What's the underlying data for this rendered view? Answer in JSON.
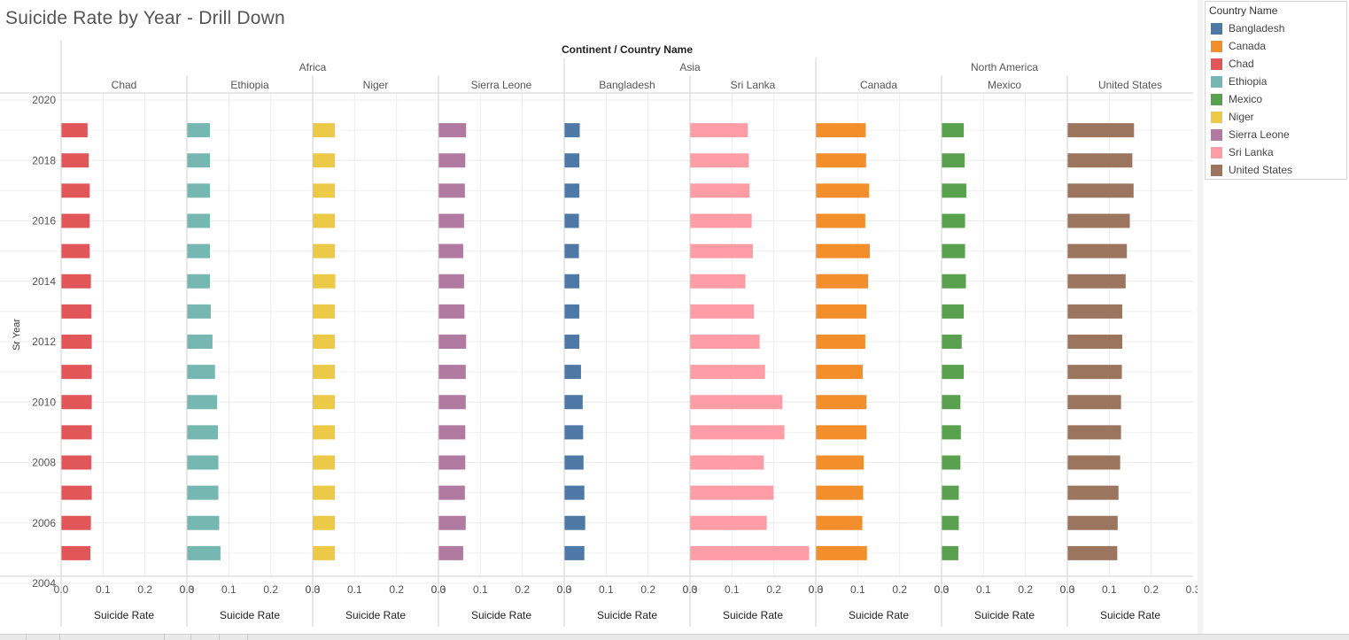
{
  "title": "Suicide Rate by Year - Drill Down",
  "chart_data": {
    "type": "bar",
    "orientation": "horizontal",
    "header_title": "Continent / Country Name",
    "y_axis_label": "Sr Year",
    "y_ticks": [
      2020,
      2018,
      2016,
      2014,
      2012,
      2010,
      2008,
      2006,
      2004
    ],
    "y_range": [
      2004,
      2020
    ],
    "x_axis_label": "Suicide Rate",
    "x_ticks": [
      "0.0",
      "0.1",
      "0.2",
      "0.3"
    ],
    "x_range": [
      0,
      0.3
    ],
    "years": [
      2005,
      2006,
      2007,
      2008,
      2009,
      2010,
      2011,
      2012,
      2013,
      2014,
      2015,
      2016,
      2017,
      2018,
      2019
    ],
    "continents": [
      {
        "name": "Africa",
        "countries": [
          "Chad",
          "Ethiopia",
          "Niger",
          "Sierra Leone"
        ]
      },
      {
        "name": "Asia",
        "countries": [
          "Bangladesh",
          "Sri Lanka"
        ]
      },
      {
        "name": "North America",
        "countries": [
          "Canada",
          "Mexico",
          "United States"
        ]
      }
    ],
    "series": [
      {
        "name": "Chad",
        "color": "#e15759",
        "values": [
          0.069,
          0.07,
          0.072,
          0.071,
          0.072,
          0.072,
          0.072,
          0.072,
          0.071,
          0.07,
          0.067,
          0.067,
          0.067,
          0.065,
          0.062
        ]
      },
      {
        "name": "Ethiopia",
        "color": "#76b7b2",
        "values": [
          0.079,
          0.076,
          0.074,
          0.074,
          0.073,
          0.071,
          0.066,
          0.06,
          0.056,
          0.054,
          0.054,
          0.054,
          0.054,
          0.054,
          0.054
        ]
      },
      {
        "name": "Niger",
        "color": "#edc948",
        "values": [
          0.052,
          0.052,
          0.052,
          0.052,
          0.052,
          0.052,
          0.052,
          0.052,
          0.052,
          0.053,
          0.052,
          0.052,
          0.052,
          0.052,
          0.052
        ]
      },
      {
        "name": "Sierra Leone",
        "color": "#b07aa1",
        "values": [
          0.058,
          0.064,
          0.062,
          0.063,
          0.063,
          0.064,
          0.064,
          0.065,
          0.061,
          0.06,
          0.058,
          0.06,
          0.062,
          0.063,
          0.065
        ]
      },
      {
        "name": "Bangladesh",
        "color": "#4e79a7",
        "values": [
          0.047,
          0.049,
          0.047,
          0.045,
          0.044,
          0.043,
          0.039,
          0.035,
          0.035,
          0.035,
          0.034,
          0.034,
          0.035,
          0.035,
          0.036
        ]
      },
      {
        "name": "Sri Lanka",
        "color": "#ff9da7",
        "values": [
          0.283,
          0.182,
          0.198,
          0.175,
          0.224,
          0.219,
          0.178,
          0.165,
          0.151,
          0.131,
          0.149,
          0.146,
          0.141,
          0.139,
          0.137
        ]
      },
      {
        "name": "Canada",
        "color": "#f28e2b",
        "values": [
          0.121,
          0.11,
          0.112,
          0.113,
          0.12,
          0.12,
          0.111,
          0.117,
          0.12,
          0.124,
          0.128,
          0.117,
          0.126,
          0.119,
          0.118
        ]
      },
      {
        "name": "Mexico",
        "color": "#59a14f",
        "values": [
          0.039,
          0.04,
          0.04,
          0.044,
          0.045,
          0.044,
          0.052,
          0.047,
          0.052,
          0.057,
          0.055,
          0.055,
          0.058,
          0.054,
          0.052
        ]
      },
      {
        "name": "United States",
        "color": "#9c755f",
        "values": [
          0.118,
          0.119,
          0.121,
          0.125,
          0.127,
          0.127,
          0.129,
          0.13,
          0.13,
          0.138,
          0.141,
          0.148,
          0.157,
          0.154,
          0.158
        ]
      }
    ]
  },
  "legend": {
    "title": "Country Name",
    "items": [
      {
        "label": "Bangladesh",
        "color": "#4e79a7"
      },
      {
        "label": "Canada",
        "color": "#f28e2b"
      },
      {
        "label": "Chad",
        "color": "#e15759"
      },
      {
        "label": "Ethiopia",
        "color": "#76b7b2"
      },
      {
        "label": "Mexico",
        "color": "#59a14f"
      },
      {
        "label": "Niger",
        "color": "#edc948"
      },
      {
        "label": "Sierra Leone",
        "color": "#b07aa1"
      },
      {
        "label": "Sri Lanka",
        "color": "#ff9da7"
      },
      {
        "label": "United States",
        "color": "#9c755f"
      }
    ]
  }
}
